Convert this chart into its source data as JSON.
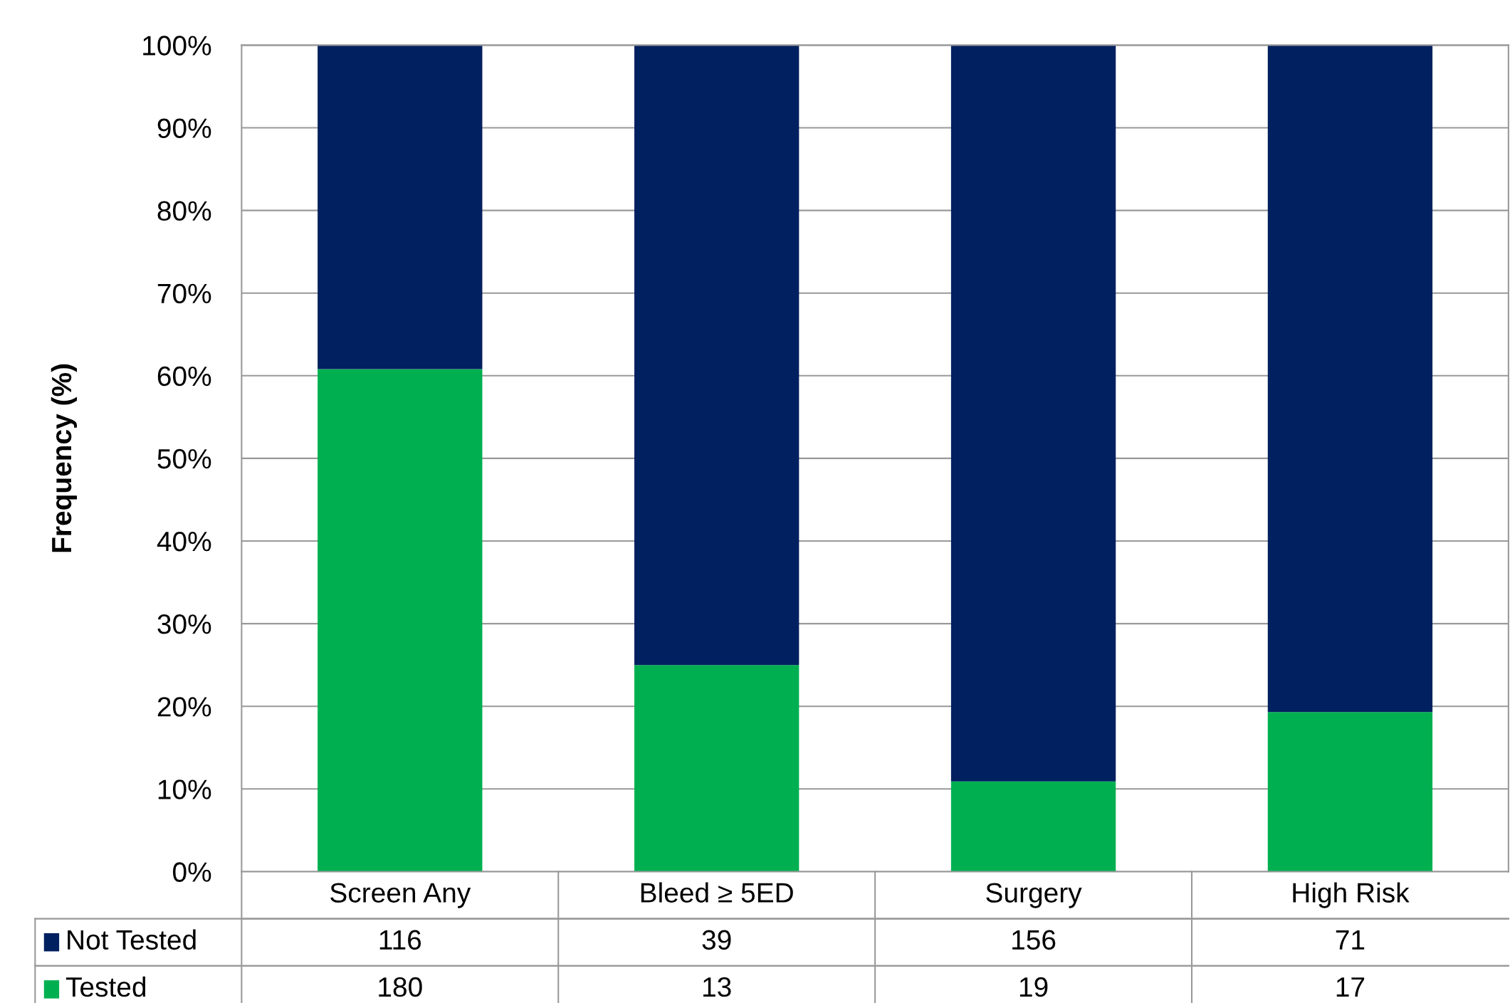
{
  "chart_data": {
    "type": "bar",
    "stacked": true,
    "ylabel": "Frequency (%)",
    "categories": [
      "Screen Any",
      "Bleed ≥ 5ED",
      "Surgery",
      "High Risk"
    ],
    "series": [
      {
        "name": "Tested",
        "color": "#00b050",
        "values": [
          60.8,
          25.0,
          10.9,
          19.3
        ]
      },
      {
        "name": "Not Tested",
        "color": "#002060",
        "values": [
          39.2,
          75.0,
          89.1,
          80.7
        ]
      }
    ],
    "annotations": [
      "116",
      "39",
      "156",
      "71",
      "180",
      "13",
      "19",
      "17"
    ],
    "legend": "bottom left",
    "ylim": [
      0,
      100
    ],
    "yticks": [
      {
        "value": 0,
        "label": "0%"
      },
      {
        "value": 10,
        "label": "10%"
      },
      {
        "value": 20,
        "label": "20%"
      },
      {
        "value": 30,
        "label": "30%"
      },
      {
        "value": 40,
        "label": "40%"
      },
      {
        "value": 50,
        "label": "50%"
      },
      {
        "value": 60,
        "label": "60%"
      },
      {
        "value": 70,
        "label": "70%"
      },
      {
        "value": 80,
        "label": "80%"
      },
      {
        "value": 90,
        "label": "90%"
      },
      {
        "value": 100,
        "label": "100%"
      }
    ],
    "grid": "y"
  }
}
